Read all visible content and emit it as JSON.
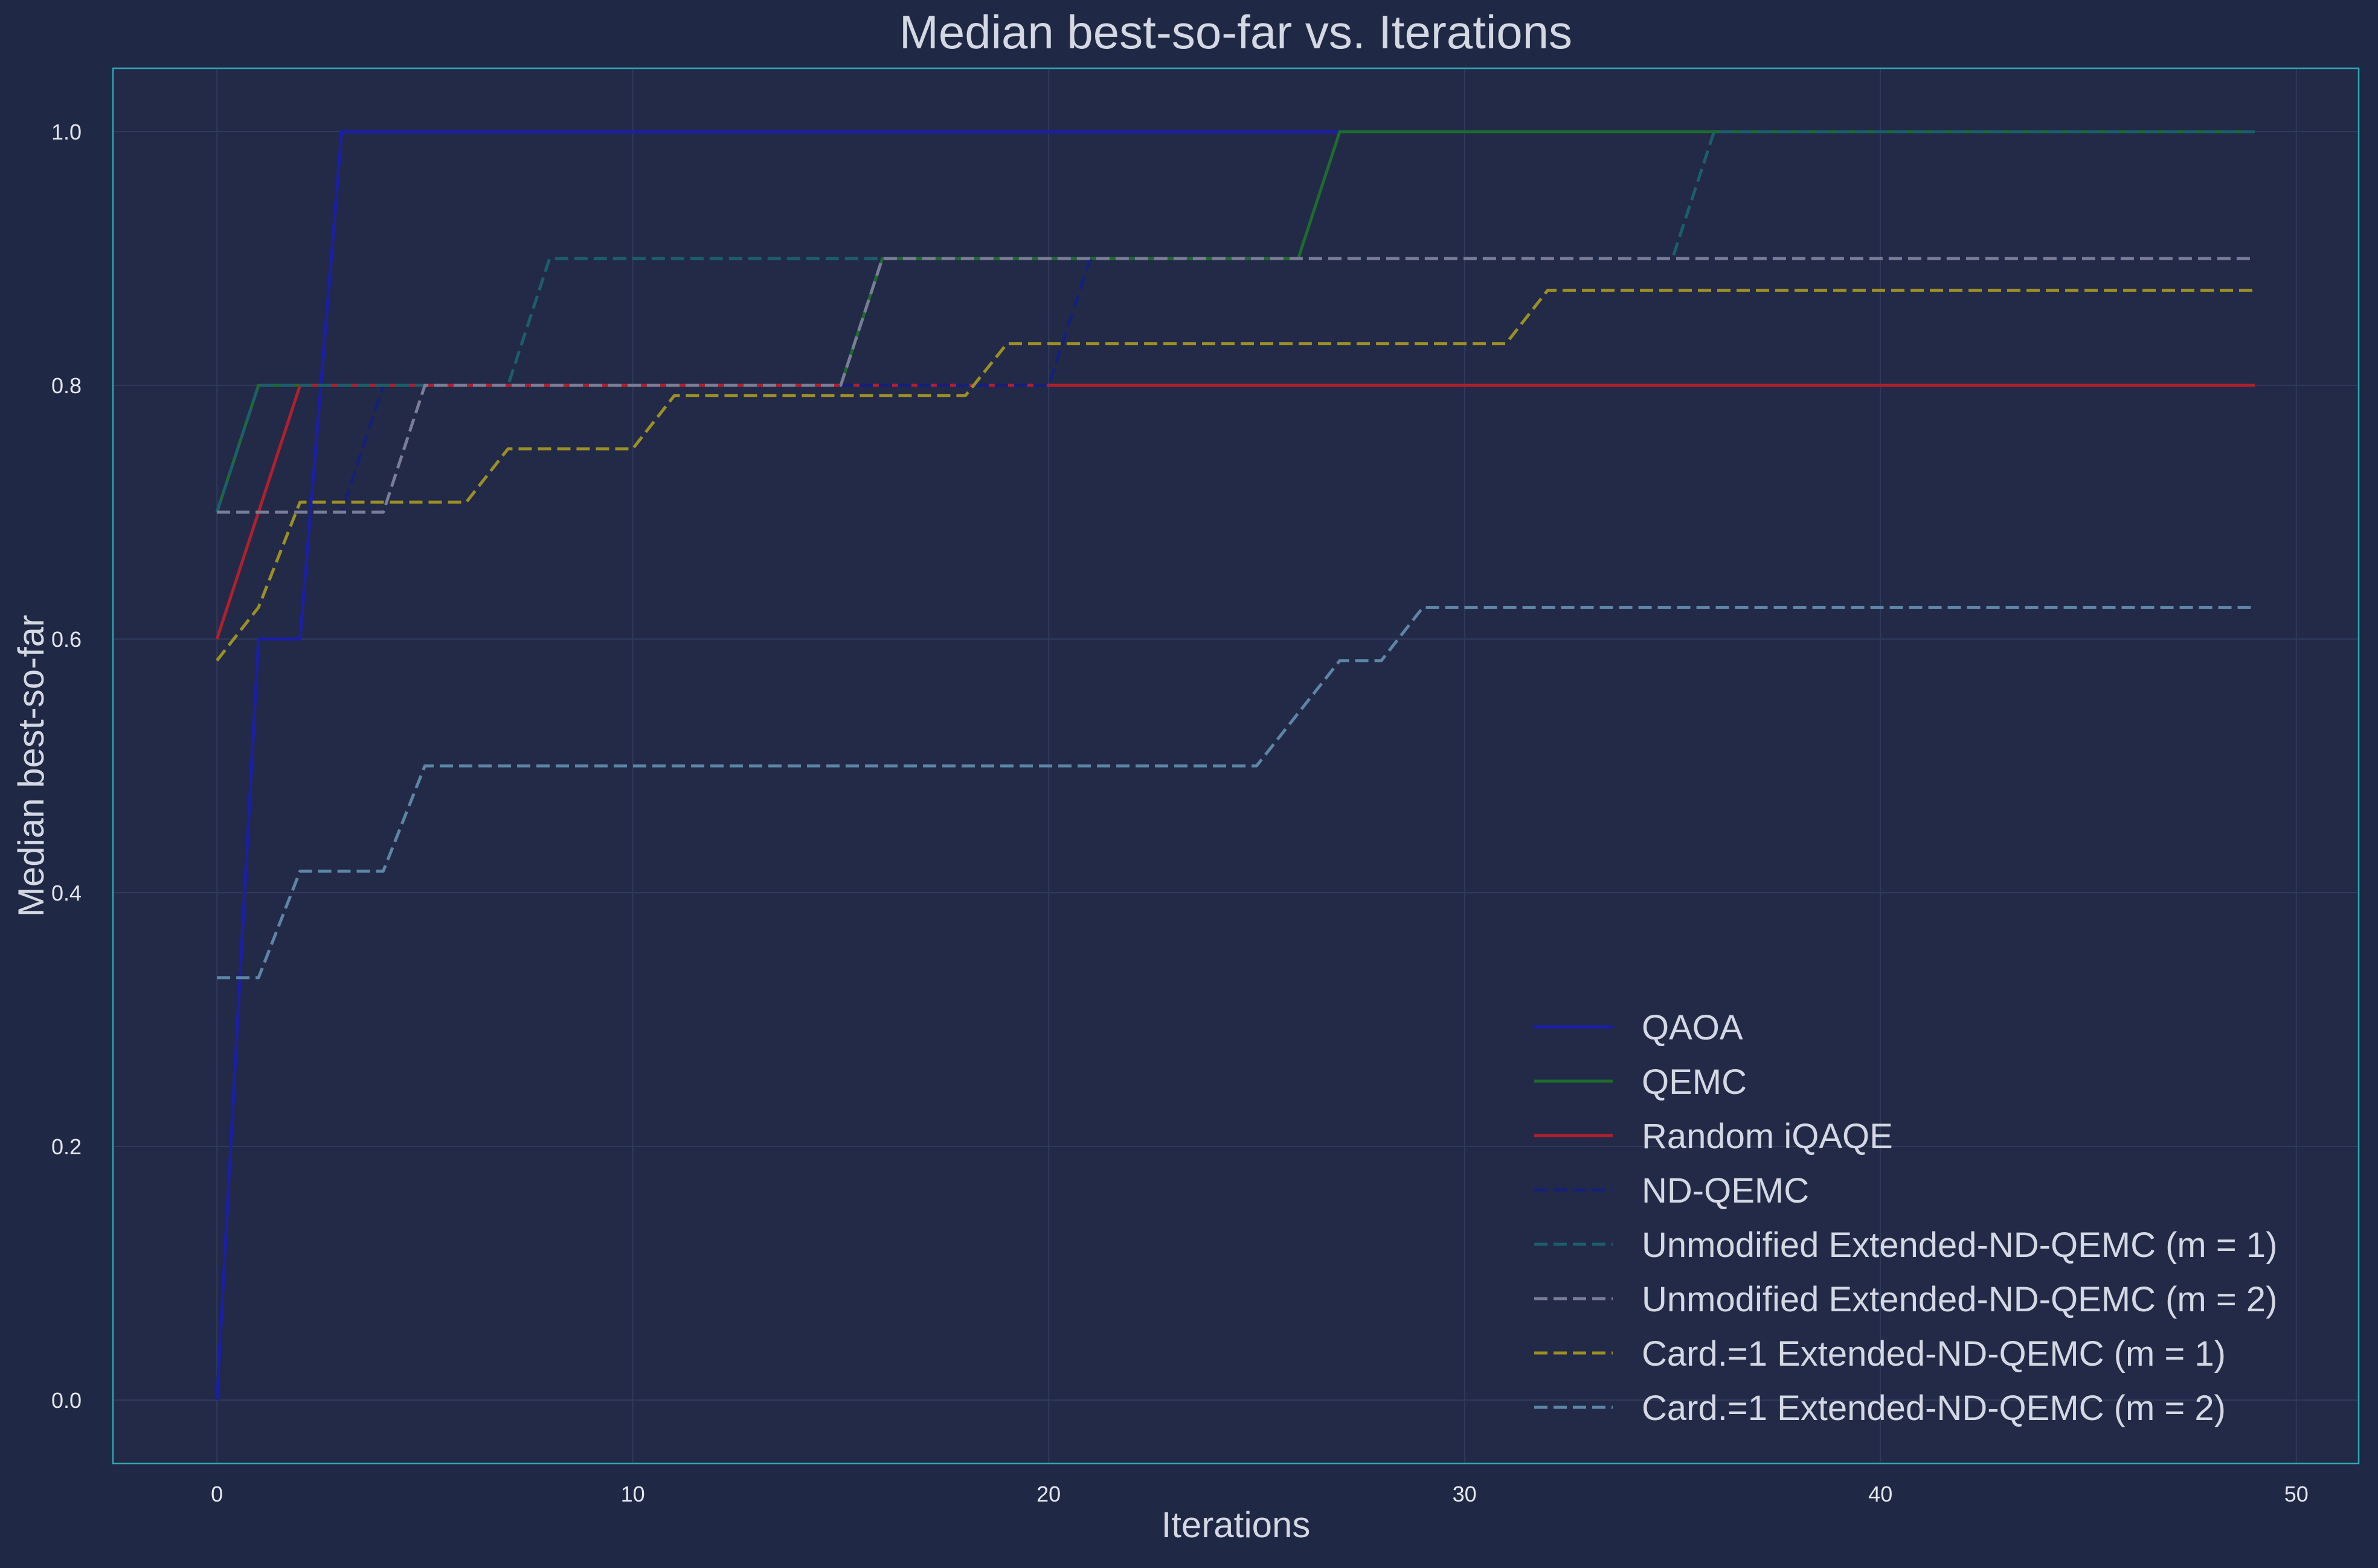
{
  "chart_data": {
    "type": "line",
    "title": "Median best-so-far vs. Iterations",
    "xlabel": "Iterations",
    "ylabel": "Median best-so-far",
    "xlim": [
      -2.5,
      51.5
    ],
    "ylim": [
      -0.05,
      1.05
    ],
    "x_ticks": [
      0,
      10,
      20,
      30,
      40,
      50
    ],
    "y_ticks": [
      0.0,
      0.2,
      0.4,
      0.6,
      0.8,
      1.0
    ],
    "x_tick_labels": [
      "0",
      "10",
      "20",
      "30",
      "40",
      "50"
    ],
    "y_tick_labels": [
      "0.0",
      "0.2",
      "0.4",
      "0.6",
      "0.8",
      "1.0"
    ],
    "grid": true,
    "legend_position": "lower-right",
    "colors": {
      "background": "#1f2844",
      "axes_background": "#222a48",
      "axes_edge": "#2fa6b4",
      "grid": "#2f3a5c",
      "text": "#d4d8e2",
      "tick_text": "#e6e8ee"
    },
    "series": [
      {
        "name": "QAOA",
        "color": "#1a1ea8",
        "dash": "solid",
        "points": [
          [
            0,
            0.0
          ],
          [
            1,
            0.6
          ],
          [
            2,
            0.6
          ],
          [
            3,
            1.0
          ],
          [
            49,
            1.0
          ]
        ]
      },
      {
        "name": "QEMC",
        "color": "#1e6b2e",
        "dash": "solid",
        "points": [
          [
            0,
            0.7
          ],
          [
            1,
            0.8
          ],
          [
            15,
            0.8
          ],
          [
            16,
            0.9
          ],
          [
            26,
            0.9
          ],
          [
            27,
            1.0
          ],
          [
            49,
            1.0
          ]
        ]
      },
      {
        "name": "Random iQAQE",
        "color": "#b0202c",
        "dash": "solid",
        "points": [
          [
            0,
            0.6
          ],
          [
            2,
            0.8
          ],
          [
            49,
            0.8
          ]
        ]
      },
      {
        "name": "ND-QEMC",
        "color": "#14207a",
        "dash": "dashed",
        "points": [
          [
            0,
            0.7
          ],
          [
            3,
            0.7
          ],
          [
            4,
            0.8
          ],
          [
            20,
            0.8
          ],
          [
            21,
            0.9
          ],
          [
            49,
            0.9
          ]
        ]
      },
      {
        "name": "Unmodified Extended-ND-QEMC (m = 1)",
        "color": "#1c5e6a",
        "dash": "dashed",
        "points": [
          [
            0,
            0.7
          ],
          [
            1,
            0.8
          ],
          [
            7,
            0.8
          ],
          [
            8,
            0.9
          ],
          [
            35,
            0.9
          ],
          [
            36,
            1.0
          ],
          [
            49,
            1.0
          ]
        ]
      },
      {
        "name": "Unmodified Extended-ND-QEMC (m = 2)",
        "color": "#7b7d97",
        "dash": "dashed",
        "points": [
          [
            0,
            0.7
          ],
          [
            4,
            0.7
          ],
          [
            5,
            0.8
          ],
          [
            15,
            0.8
          ],
          [
            16,
            0.9
          ],
          [
            49,
            0.9
          ]
        ]
      },
      {
        "name": "Card.=1 Extended-ND-QEMC (m = 1)",
        "color": "#9c8f24",
        "dash": "dashed",
        "points": [
          [
            0,
            0.583
          ],
          [
            1,
            0.625
          ],
          [
            2,
            0.708
          ],
          [
            6,
            0.708
          ],
          [
            7,
            0.75
          ],
          [
            10,
            0.75
          ],
          [
            11,
            0.792
          ],
          [
            18,
            0.792
          ],
          [
            19,
            0.833
          ],
          [
            31,
            0.833
          ],
          [
            32,
            0.875
          ],
          [
            49,
            0.875
          ]
        ]
      },
      {
        "name": "Card.=1 Extended-ND-QEMC (m = 2)",
        "color": "#5d85a6",
        "dash": "dashed",
        "points": [
          [
            0,
            0.333
          ],
          [
            1,
            0.333
          ],
          [
            2,
            0.417
          ],
          [
            4,
            0.417
          ],
          [
            5,
            0.5
          ],
          [
            25,
            0.5
          ],
          [
            27,
            0.583
          ],
          [
            28,
            0.583
          ],
          [
            29,
            0.625
          ],
          [
            49,
            0.625
          ]
        ]
      }
    ]
  }
}
